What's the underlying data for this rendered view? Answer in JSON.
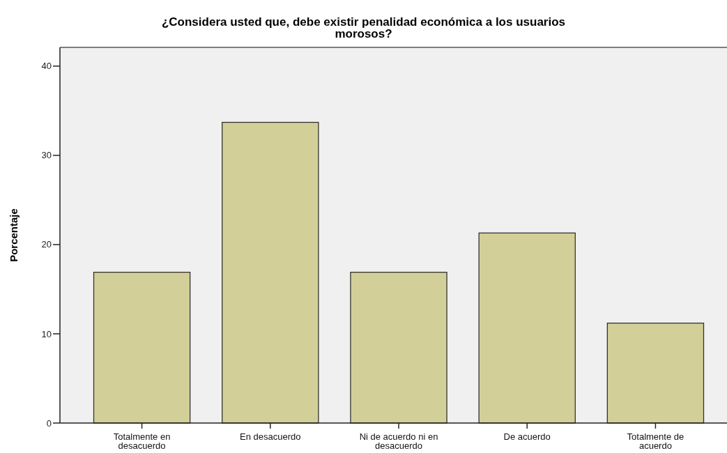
{
  "chart_data": {
    "type": "bar",
    "title": "¿Considera usted que, debe existir penalidad económica a los usuarios morosos?",
    "ylabel": "Porcentaje",
    "categories": [
      "Totalmente en desacuerdo",
      "En desacuerdo",
      "Ni de acuerdo ni en desacuerdo",
      "De acuerdo",
      "Totalmente de acuerdo"
    ],
    "values": [
      16.9,
      33.7,
      16.9,
      21.3,
      11.2
    ],
    "color": "#d3cf98",
    "ylim": [
      0,
      42.1
    ],
    "yticks": [
      0,
      10,
      20,
      30,
      40
    ],
    "grid": false
  }
}
